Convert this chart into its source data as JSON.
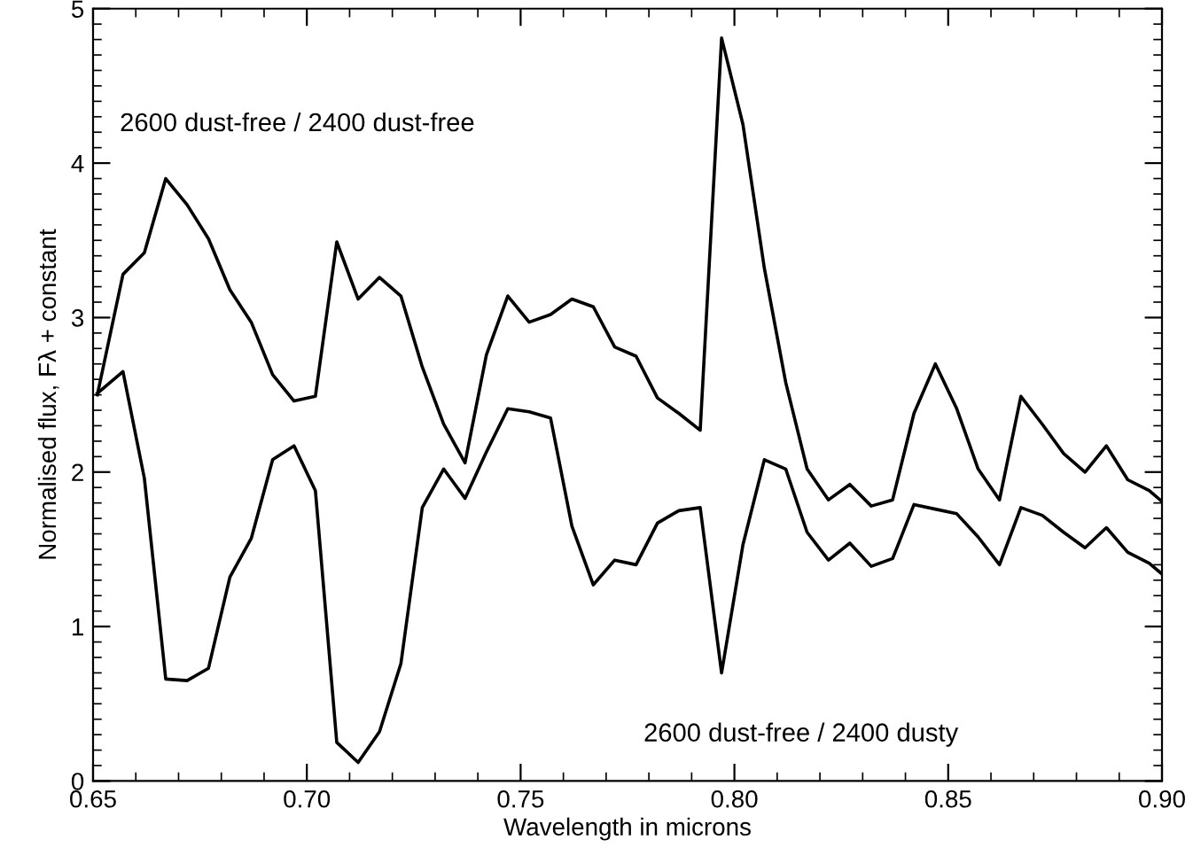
{
  "chart_data": {
    "type": "line",
    "xlabel": "Wavelength in microns",
    "ylabel": "Normalised flux, Fλ + constant",
    "xlim": [
      0.65,
      0.9
    ],
    "ylim": [
      0,
      5
    ],
    "xticks": [
      {
        "value": 0.65,
        "label": "0.65"
      },
      {
        "value": 0.7,
        "label": "0.70"
      },
      {
        "value": 0.75,
        "label": "0.75"
      },
      {
        "value": 0.8,
        "label": "0.80"
      },
      {
        "value": 0.85,
        "label": "0.85"
      },
      {
        "value": 0.9,
        "label": "0.90"
      }
    ],
    "yticks": [
      0,
      1,
      2,
      3,
      4,
      5
    ],
    "grid": false,
    "marker": "none",
    "line_style": "solid",
    "series": [
      {
        "color": "#000000",
        "x": [
          0.651,
          0.657,
          0.662,
          0.667,
          0.672,
          0.677,
          0.682,
          0.687,
          0.692,
          0.697,
          0.702,
          0.707,
          0.712,
          0.717,
          0.722,
          0.727,
          0.732,
          0.737,
          0.742,
          0.747,
          0.752,
          0.757,
          0.762,
          0.767,
          0.772,
          0.777,
          0.782,
          0.787,
          0.792,
          0.797,
          0.802,
          0.807,
          0.812,
          0.817,
          0.822,
          0.827,
          0.832,
          0.837,
          0.842,
          0.847,
          0.852,
          0.857,
          0.862,
          0.867,
          0.872,
          0.877,
          0.882,
          0.887,
          0.892,
          0.897,
          0.9
        ],
        "values": [
          2.5,
          3.28,
          3.42,
          3.9,
          3.73,
          3.51,
          3.18,
          2.97,
          2.63,
          2.46,
          2.49,
          3.49,
          3.12,
          3.26,
          3.14,
          2.68,
          2.31,
          2.06,
          2.76,
          3.14,
          2.97,
          3.02,
          3.12,
          3.07,
          2.81,
          2.75,
          2.48,
          2.38,
          2.27,
          4.81,
          4.25,
          3.32,
          2.58,
          2.02,
          1.82,
          1.92,
          1.78,
          1.82,
          2.38,
          2.7,
          2.41,
          2.02,
          1.82,
          2.49,
          2.31,
          2.12,
          2.0,
          2.17,
          1.95,
          1.88,
          1.81
        ]
      },
      {
        "color": "#000000",
        "x": [
          0.651,
          0.657,
          0.662,
          0.667,
          0.672,
          0.677,
          0.682,
          0.687,
          0.692,
          0.697,
          0.702,
          0.707,
          0.712,
          0.717,
          0.722,
          0.727,
          0.732,
          0.737,
          0.742,
          0.747,
          0.752,
          0.757,
          0.762,
          0.767,
          0.772,
          0.777,
          0.782,
          0.787,
          0.792,
          0.797,
          0.802,
          0.807,
          0.812,
          0.817,
          0.822,
          0.827,
          0.832,
          0.837,
          0.842,
          0.847,
          0.852,
          0.857,
          0.862,
          0.867,
          0.872,
          0.877,
          0.882,
          0.887,
          0.892,
          0.897,
          0.9
        ],
        "values": [
          2.51,
          2.65,
          1.96,
          0.66,
          0.65,
          0.73,
          1.32,
          1.57,
          2.08,
          2.17,
          1.88,
          0.25,
          0.12,
          0.32,
          0.76,
          1.77,
          2.02,
          1.83,
          2.13,
          2.41,
          2.39,
          2.35,
          1.65,
          1.27,
          1.43,
          1.4,
          1.67,
          1.75,
          1.77,
          0.7,
          1.53,
          2.08,
          2.02,
          1.61,
          1.43,
          1.54,
          1.39,
          1.44,
          1.79,
          1.76,
          1.73,
          1.58,
          1.4,
          1.77,
          1.72,
          1.61,
          1.51,
          1.64,
          1.48,
          1.41,
          1.34
        ]
      }
    ],
    "annotations": [
      "2600 dust-free / 2400 dust-free",
      "2600 dust-free / 2400 dusty"
    ]
  }
}
